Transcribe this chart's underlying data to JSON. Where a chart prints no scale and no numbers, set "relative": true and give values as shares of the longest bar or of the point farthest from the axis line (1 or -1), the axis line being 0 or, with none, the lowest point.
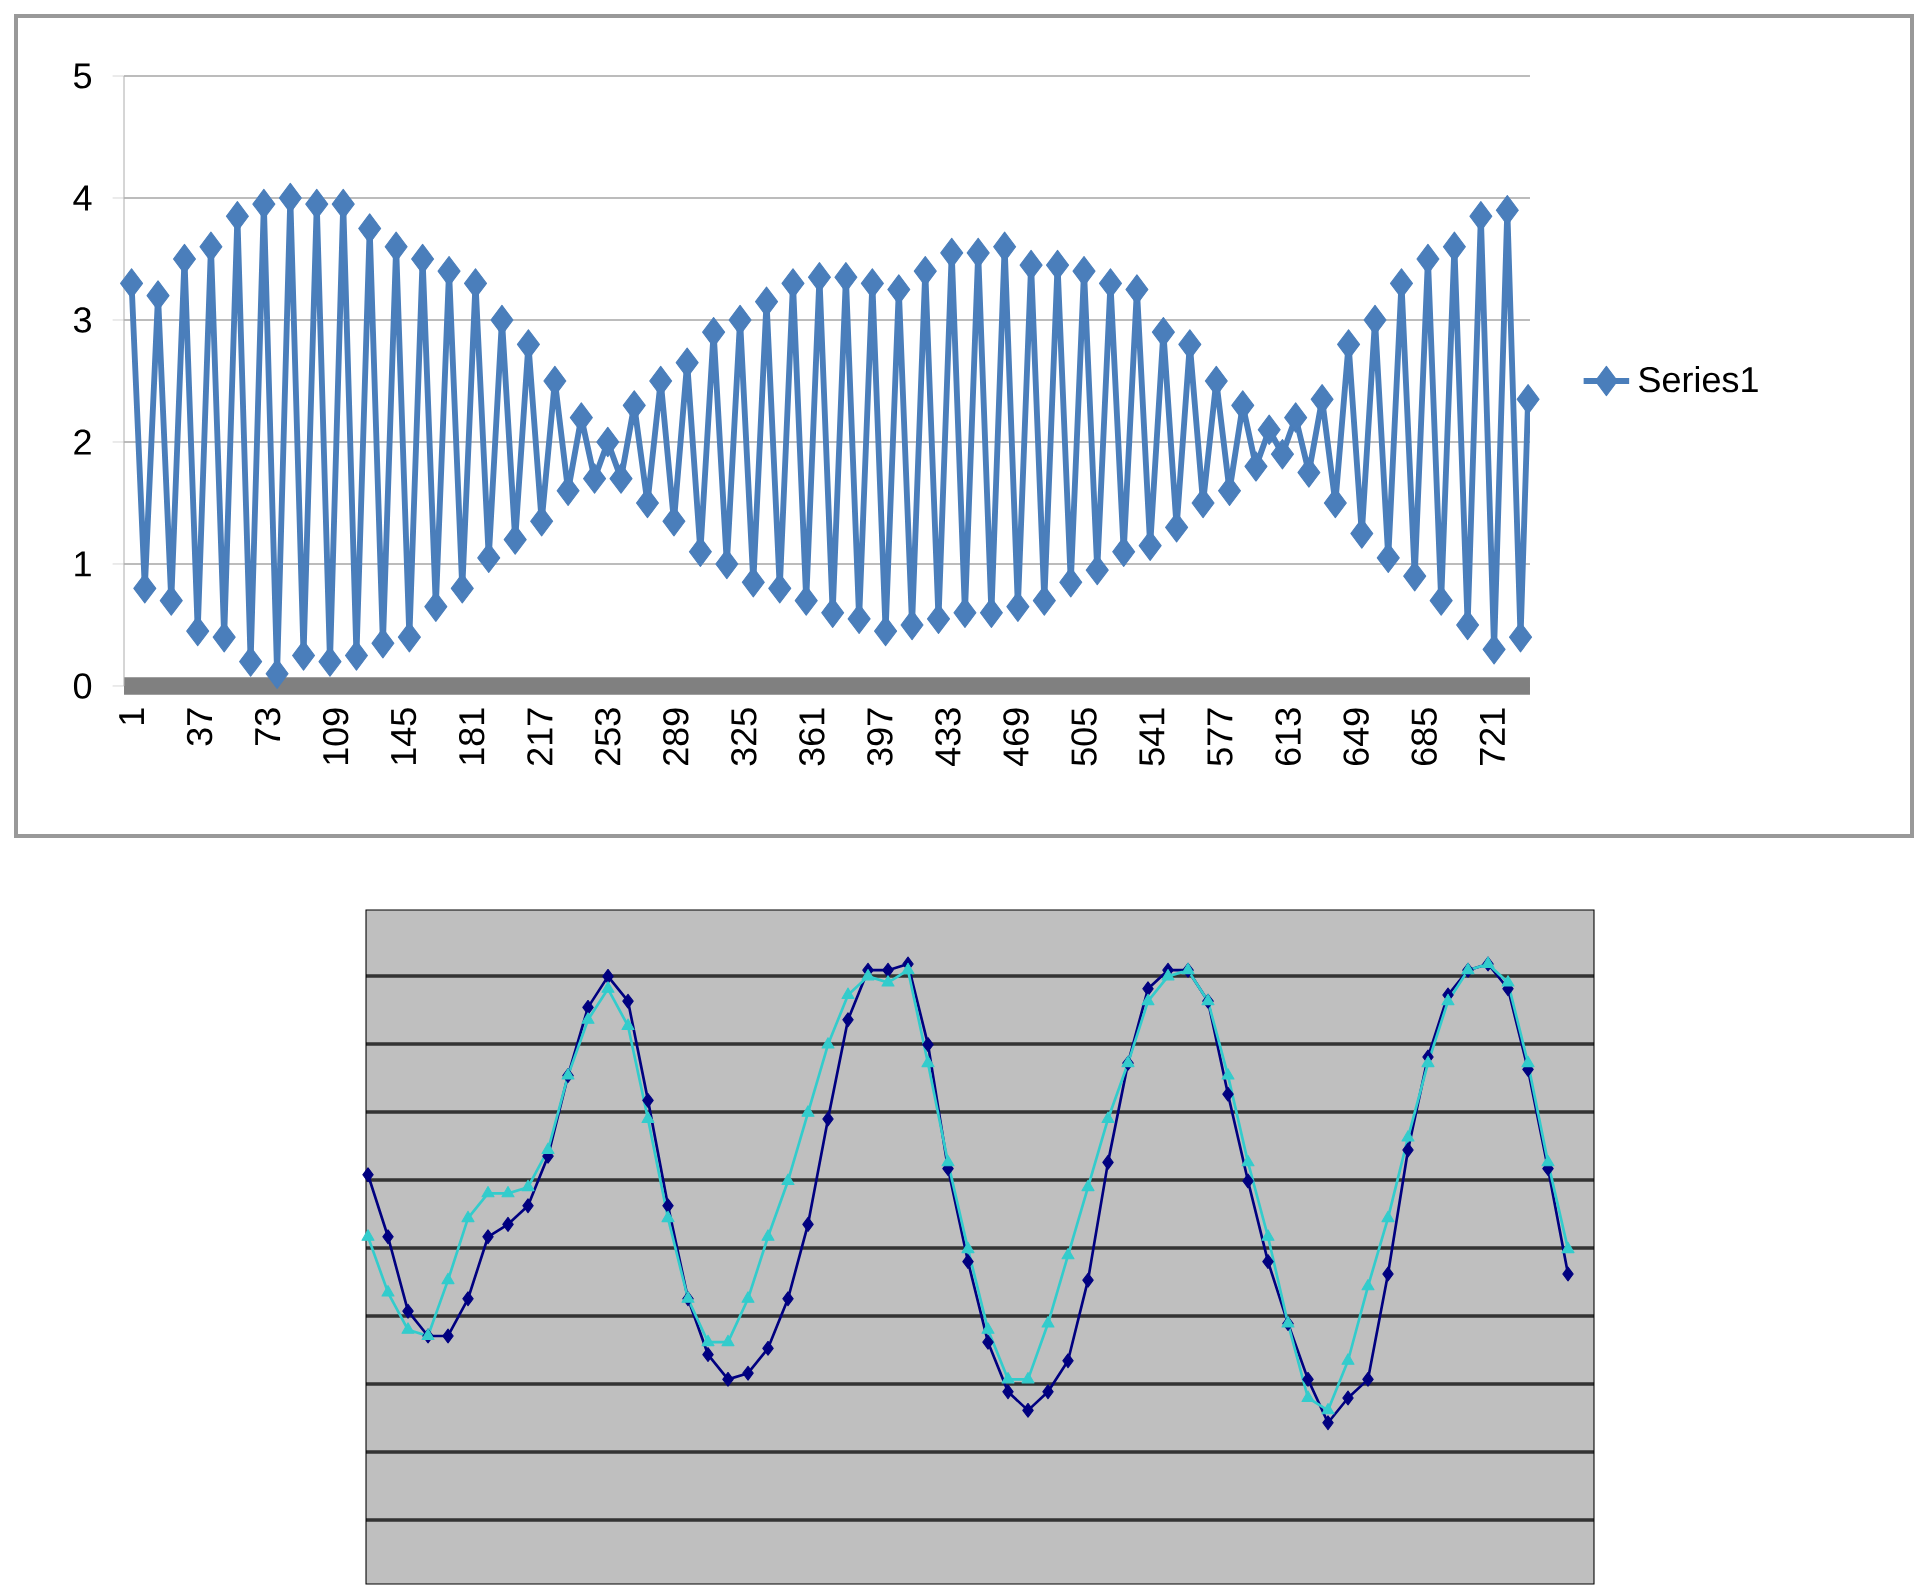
{
  "chart_data": [
    {
      "type": "line",
      "x": [
        1,
        8,
        15,
        22,
        29,
        36,
        43,
        50,
        57,
        64,
        71,
        78,
        85,
        92,
        99,
        106,
        113,
        120,
        127,
        134,
        141,
        148,
        155,
        162,
        169,
        176,
        183,
        190,
        197,
        204,
        211,
        218,
        225,
        232,
        239,
        246,
        253,
        260,
        267,
        274,
        281,
        288,
        295,
        302,
        309,
        316,
        323,
        330,
        337,
        344,
        351,
        358,
        365,
        372,
        379,
        386,
        393,
        400,
        407,
        414,
        421,
        428,
        435,
        442,
        449,
        456,
        463,
        470,
        477,
        484,
        491,
        498,
        505,
        512,
        519,
        526,
        533,
        540,
        547,
        554,
        561,
        568,
        575,
        582,
        589,
        596,
        603,
        610,
        617,
        624,
        631,
        638,
        645,
        652,
        659,
        666,
        673,
        680,
        687,
        694,
        701,
        708,
        715,
        722,
        729,
        736,
        740
      ],
      "series": [
        {
          "name": "Series1",
          "color": "#4a7ebb",
          "values": [
            3.3,
            0.8,
            3.2,
            0.7,
            3.5,
            0.45,
            3.6,
            0.4,
            3.85,
            0.2,
            3.95,
            0.1,
            4.0,
            0.25,
            3.95,
            0.2,
            3.95,
            0.25,
            3.75,
            0.35,
            3.6,
            0.4,
            3.5,
            0.65,
            3.4,
            0.8,
            3.3,
            1.05,
            3.0,
            1.2,
            2.8,
            1.35,
            2.5,
            1.6,
            2.2,
            1.7,
            2.0,
            1.7,
            2.3,
            1.5,
            2.5,
            1.35,
            2.65,
            1.1,
            2.9,
            1.0,
            3.0,
            0.85,
            3.15,
            0.8,
            3.3,
            0.7,
            3.35,
            0.6,
            3.35,
            0.55,
            3.3,
            0.45,
            3.25,
            0.5,
            3.4,
            0.55,
            3.55,
            0.6,
            3.55,
            0.6,
            3.6,
            0.65,
            3.45,
            0.7,
            3.45,
            0.85,
            3.4,
            0.95,
            3.3,
            1.1,
            3.25,
            1.15,
            2.9,
            1.3,
            2.8,
            1.5,
            2.5,
            1.6,
            2.3,
            1.8,
            2.1,
            1.9,
            2.2,
            1.75,
            2.35,
            1.5,
            2.8,
            1.25,
            3.0,
            1.05,
            3.3,
            0.9,
            3.5,
            0.7,
            3.6,
            0.5,
            3.85,
            0.3,
            3.9,
            0.4,
            2.35
          ]
        }
      ],
      "xlim": [
        -3,
        741
      ],
      "xticks": [
        1,
        37,
        73,
        109,
        145,
        181,
        217,
        253,
        289,
        325,
        361,
        397,
        433,
        469,
        505,
        541,
        577,
        613,
        649,
        685,
        721
      ],
      "ylim": [
        0,
        5
      ],
      "yticks": [
        0,
        1,
        2,
        3,
        4,
        5
      ],
      "grid": "y",
      "legend": "right",
      "marker": "diamond",
      "line_style": "solid"
    },
    {
      "type": "line",
      "relative": true,
      "grid": true,
      "categories": [
        null,
        null,
        null,
        null,
        null,
        null,
        null,
        null,
        null,
        null,
        null,
        null,
        null,
        null,
        null,
        null,
        null,
        null,
        null,
        null,
        null,
        null,
        null,
        null,
        null,
        null,
        null,
        null,
        null,
        null,
        null,
        null,
        null,
        null,
        null,
        null,
        null,
        null,
        null,
        null,
        null,
        null,
        null,
        null,
        null,
        null,
        null,
        null,
        null,
        null,
        null,
        null,
        null,
        null,
        null,
        null,
        null,
        null,
        null,
        null,
        null
      ],
      "series": [
        {
          "color": "#000080",
          "marker": "diamond",
          "values": [
            0.66,
            0.56,
            0.44,
            0.4,
            0.4,
            0.46,
            0.56,
            0.58,
            0.61,
            0.69,
            0.82,
            0.93,
            0.98,
            0.94,
            0.78,
            0.61,
            0.46,
            0.37,
            0.33,
            0.34,
            0.38,
            0.46,
            0.58,
            0.75,
            0.91,
            0.99,
            0.99,
            1.0,
            0.87,
            0.67,
            0.52,
            0.39,
            0.31,
            0.28,
            0.31,
            0.36,
            0.49,
            0.68,
            0.84,
            0.96,
            0.99,
            0.99,
            0.94,
            0.79,
            0.65,
            0.52,
            0.42,
            0.33,
            0.26,
            0.3,
            0.33,
            0.5,
            0.7,
            0.85,
            0.95,
            0.99,
            1.0,
            0.96,
            0.83,
            0.67,
            0.5
          ]
        },
        {
          "color": "#33cccc",
          "marker": "triangle",
          "values": [
            0.56,
            0.47,
            0.41,
            0.4,
            0.49,
            0.59,
            0.63,
            0.63,
            0.64,
            0.7,
            0.82,
            0.91,
            0.96,
            0.9,
            0.75,
            0.59,
            0.46,
            0.39,
            0.39,
            0.46,
            0.56,
            0.65,
            0.76,
            0.87,
            0.95,
            0.98,
            0.97,
            0.99,
            0.84,
            0.68,
            0.54,
            0.41,
            0.33,
            0.33,
            0.42,
            0.53,
            0.64,
            0.75,
            0.84,
            0.94,
            0.98,
            0.99,
            0.94,
            0.82,
            0.68,
            0.56,
            0.42,
            0.3,
            0.28,
            0.36,
            0.48,
            0.59,
            0.72,
            0.84,
            0.94,
            0.99,
            1.0,
            0.97,
            0.84,
            0.68,
            0.54
          ]
        }
      ]
    }
  ]
}
